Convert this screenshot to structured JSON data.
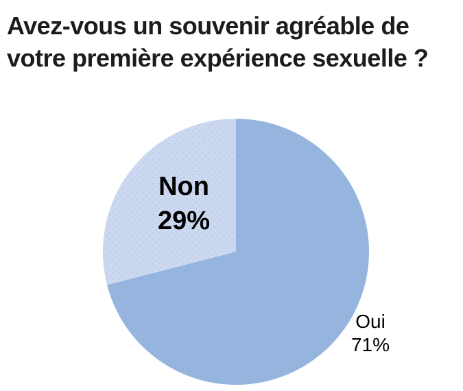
{
  "title": {
    "lines": [
      "Avez-vous un souvenir agréable de",
      "votre première expérience sexuelle ?"
    ]
  },
  "chart_data": {
    "type": "pie",
    "title": "Avez-vous un souvenir agréable de votre première expérience sexuelle ?",
    "slices": [
      {
        "label": "Oui",
        "value": 71,
        "percent_label": "71%",
        "color": "#95B5DF",
        "fill_style": "solid",
        "label_position": "outside-bottom-right",
        "label_weight": "regular"
      },
      {
        "label": "Non",
        "value": 29,
        "percent_label": "29%",
        "color": "#CBD8EF",
        "dot_color": "#B5C7E6",
        "fill_style": "dotted-pattern",
        "label_position": "inside",
        "label_weight": "bold"
      }
    ],
    "start_angle_deg": 0,
    "direction": "clockwise",
    "legend": "none",
    "background": "#FFFFFF",
    "text_color": "#1C1C1C"
  }
}
